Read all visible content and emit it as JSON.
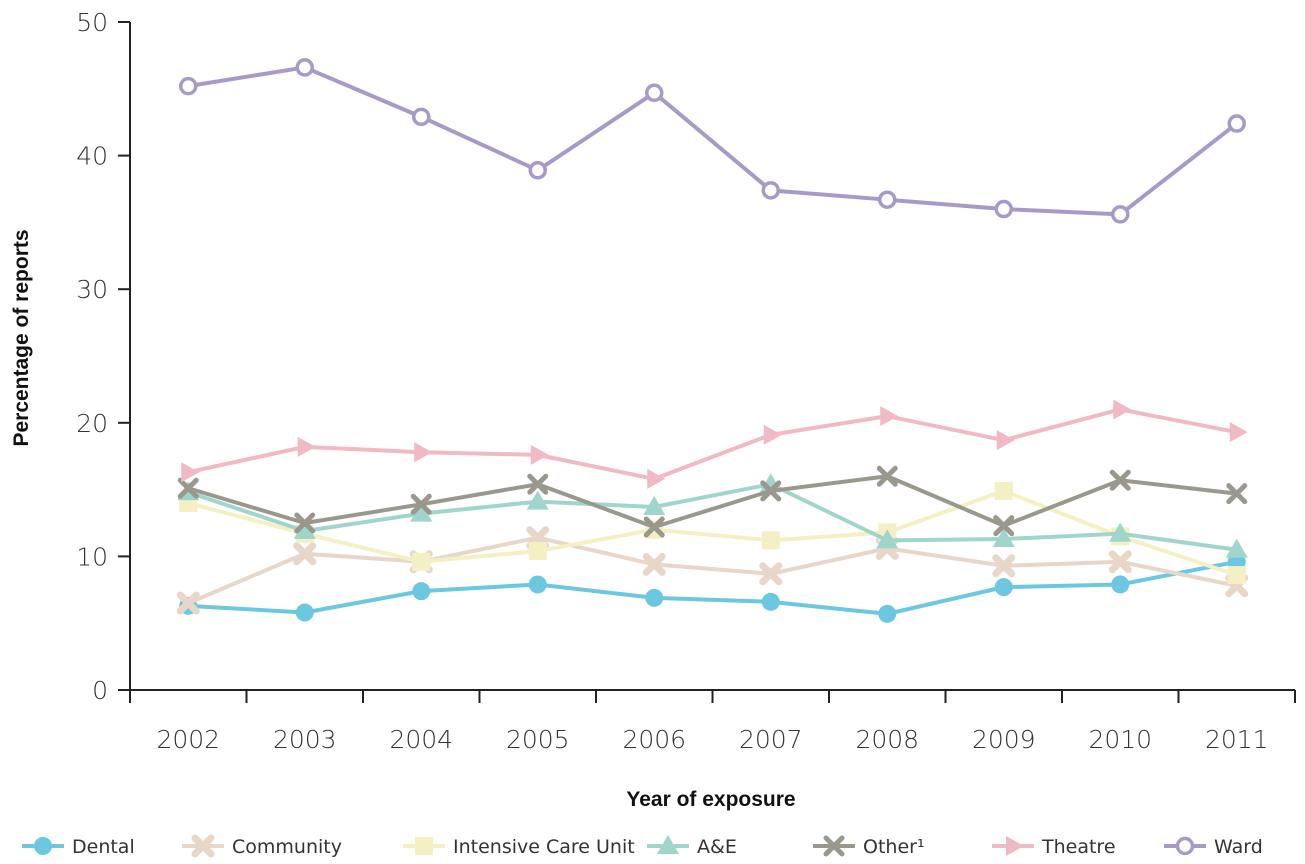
{
  "chart_data": {
    "type": "line",
    "xlabel": "Year of exposure",
    "ylabel": "Percentage of reports",
    "ylim": [
      0,
      50
    ],
    "yticks": [
      0,
      10,
      20,
      30,
      40,
      50
    ],
    "categories": [
      "2002",
      "2003",
      "2004",
      "2005",
      "2006",
      "2007",
      "2008",
      "2009",
      "2010",
      "2011"
    ],
    "grid": false,
    "legend_position": "bottom",
    "series": [
      {
        "name": "Dental",
        "marker": "circle",
        "color": "#6cc7e0",
        "values": [
          6.3,
          5.8,
          7.4,
          7.9,
          6.9,
          6.6,
          5.7,
          7.7,
          7.9,
          9.6
        ]
      },
      {
        "name": "Community",
        "marker": "cross",
        "color": "#e8d6c9",
        "values": [
          6.5,
          10.2,
          9.6,
          11.4,
          9.4,
          8.7,
          10.6,
          9.3,
          9.6,
          7.8
        ]
      },
      {
        "name": "Intensive Care Unit",
        "marker": "square",
        "color": "#f4f0c4",
        "values": [
          14.0,
          11.7,
          9.6,
          10.4,
          12.0,
          11.2,
          11.8,
          14.9,
          11.5,
          8.6
        ]
      },
      {
        "name": "A&E",
        "marker": "triangle",
        "color": "#9fd5cb",
        "values": [
          14.8,
          11.9,
          13.2,
          14.1,
          13.7,
          15.4,
          11.2,
          11.3,
          11.7,
          10.5
        ]
      },
      {
        "name": "Other¹",
        "marker": "x",
        "color": "#9a978d",
        "values": [
          15.1,
          12.5,
          13.9,
          15.4,
          12.2,
          14.9,
          16.0,
          12.3,
          15.7,
          14.7
        ]
      },
      {
        "name": "Theatre",
        "marker": "arrow",
        "color": "#f1b9c3",
        "values": [
          16.3,
          18.2,
          17.8,
          17.6,
          15.8,
          19.1,
          20.5,
          18.7,
          21.0,
          19.3
        ]
      },
      {
        "name": "Ward",
        "marker": "ring",
        "color": "#a79ac8",
        "values": [
          45.2,
          46.6,
          42.9,
          38.9,
          44.7,
          37.4,
          36.7,
          36.0,
          35.6,
          42.4
        ]
      }
    ]
  }
}
